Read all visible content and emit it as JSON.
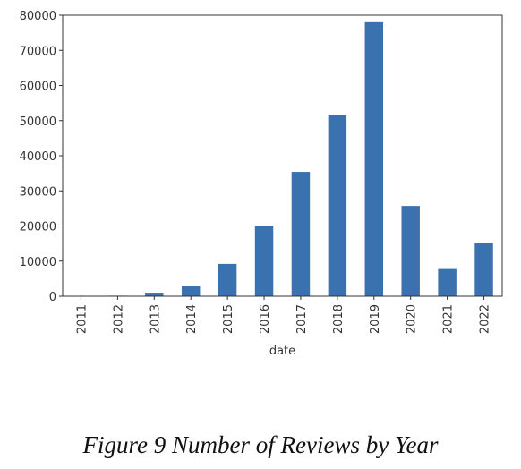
{
  "chart_data": {
    "type": "bar",
    "categories": [
      "2011",
      "2012",
      "2013",
      "2014",
      "2015",
      "2016",
      "2017",
      "2018",
      "2019",
      "2020",
      "2021",
      "2022"
    ],
    "values": [
      80,
      150,
      1000,
      2800,
      9200,
      20000,
      35400,
      51700,
      78000,
      25700,
      8000,
      15100
    ],
    "xlabel": "date",
    "ylabel": "",
    "ylim": [
      0,
      80000
    ],
    "yticks": [
      0,
      10000,
      20000,
      30000,
      40000,
      50000,
      60000,
      70000,
      80000
    ],
    "bar_color": "#3a72b0",
    "grid": false
  },
  "caption": "Figure 9 Number of Reviews by Year"
}
